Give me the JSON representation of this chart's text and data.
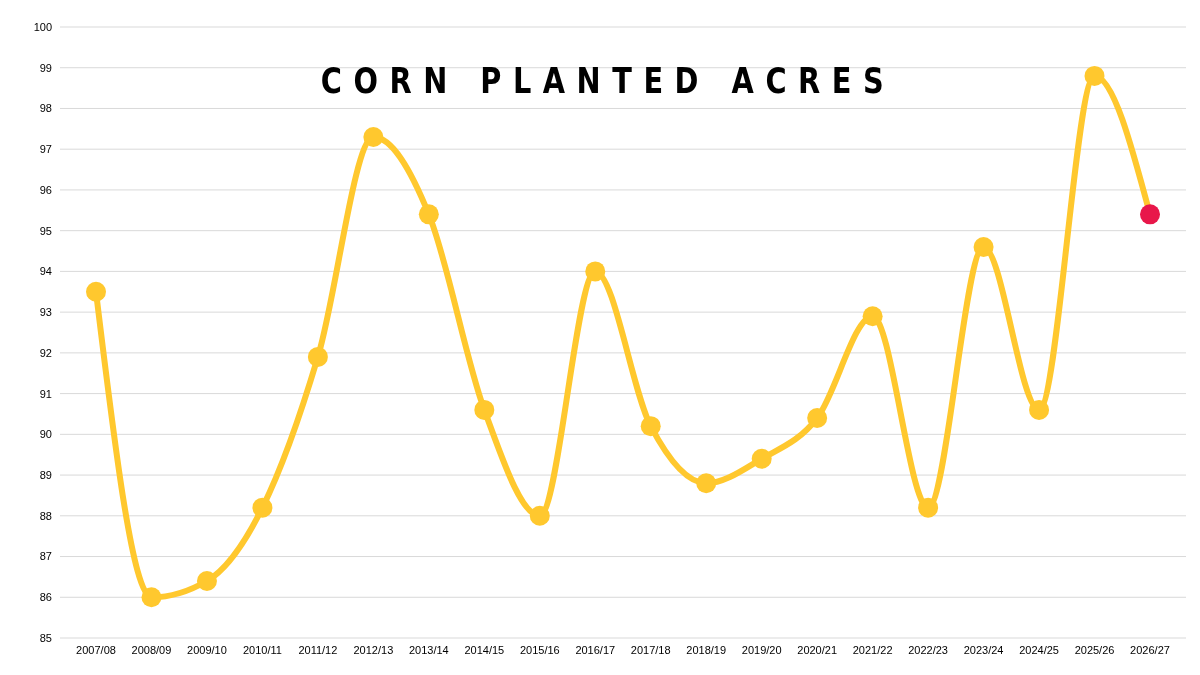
{
  "chart_data": {
    "type": "line",
    "title": "CORN PLANTED ACRES",
    "categories": [
      "2007/08",
      "2008/09",
      "2009/10",
      "2010/11",
      "2011/12",
      "2012/13",
      "2013/14",
      "2014/15",
      "2015/16",
      "2016/17",
      "2017/18",
      "2018/19",
      "2019/20",
      "2020/21",
      "2021/22",
      "2022/23",
      "2023/24",
      "2024/25",
      "2025/26",
      "2026/27"
    ],
    "series": [
      {
        "color": "#ffc82e",
        "colors": [
          "#ffc82e",
          "#ffc82e",
          "#ffc82e",
          "#ffc82e",
          "#ffc82e",
          "#ffc82e",
          "#ffc82e",
          "#ffc82e",
          "#ffc82e",
          "#ffc82e",
          "#ffc82e",
          "#ffc82e",
          "#ffc82e",
          "#ffc82e",
          "#ffc82e",
          "#ffc82e",
          "#ffc82e",
          "#ffc82e",
          "#ffc82e",
          "#e8174a"
        ],
        "values": [
          93.5,
          86.0,
          86.4,
          88.2,
          91.9,
          97.3,
          95.4,
          90.6,
          88.0,
          94.0,
          90.2,
          88.8,
          89.4,
          90.4,
          92.9,
          88.2,
          94.6,
          90.6,
          98.8,
          95.4
        ]
      }
    ],
    "ylim": [
      85,
      100
    ],
    "yticks": [
      85,
      86,
      87,
      88,
      89,
      90,
      91,
      92,
      93,
      94,
      95,
      96,
      97,
      98,
      99,
      100
    ],
    "grid": "y",
    "marker": "circle",
    "line_style": "solid",
    "legend": false
  }
}
